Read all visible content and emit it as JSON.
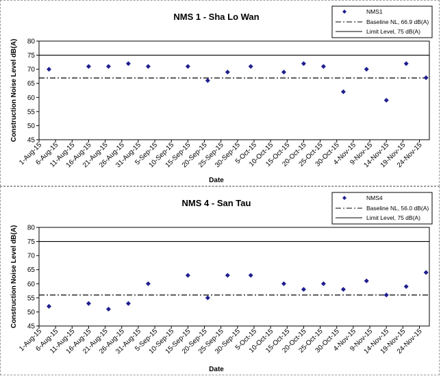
{
  "chart_data": [
    {
      "type": "scatter",
      "title": "NMS 1 - Sha Lo Wan",
      "xlabel": "Date",
      "ylabel": "Construction Noise Level  dB(A)",
      "ylim": [
        45,
        80
      ],
      "yticks": [
        "45",
        "50",
        "55",
        "60",
        "65",
        "70",
        "75",
        "80"
      ],
      "xtick_labels": [
        "1-Aug-15",
        "6-Aug-15",
        "11-Aug-15",
        "16-Aug-15",
        "21-Aug-15",
        "26-Aug-15",
        "31-Aug-15",
        "5-Sep-15",
        "10-Sep-15",
        "15-Sep-15",
        "20-Sep-15",
        "25-Sep-15",
        "30-Sep-15",
        "5-Oct-15",
        "10-Oct-15",
        "15-Oct-15",
        "20-Oct-15",
        "25-Oct-15",
        "30-Oct-15",
        "4-Nov-15",
        "9-Nov-15",
        "14-Nov-15",
        "19-Nov-15",
        "24-Nov-15"
      ],
      "grid": false,
      "legend_position": "top-right",
      "series": [
        {
          "name": "NMS1",
          "x": [
            "4-Aug-15",
            "16-Aug-15",
            "22-Aug-15",
            "28-Aug-15",
            "3-Sep-15",
            "15-Sep-15",
            "21-Sep-15",
            "27-Sep-15",
            "4-Oct-15",
            "14-Oct-15",
            "20-Oct-15",
            "26-Oct-15",
            "1-Nov-15",
            "8-Nov-15",
            "14-Nov-15",
            "20-Nov-15",
            "26-Nov-15"
          ],
          "y": [
            70,
            71,
            71,
            72,
            71,
            71,
            66,
            69,
            71,
            69,
            72,
            71,
            62,
            70,
            59,
            72,
            67
          ]
        }
      ],
      "reference_lines": [
        {
          "name": "Baseline NL, 66.9 dB(A)",
          "value": 66.9,
          "style": "dash-dot"
        },
        {
          "name": "Limit Level, 75 dB(A)",
          "value": 75,
          "style": "solid"
        }
      ],
      "colors": {
        "marker": "#1f1f8f",
        "line": "#000000"
      }
    },
    {
      "type": "scatter",
      "title": "NMS 4 - San Tau",
      "xlabel": "Date",
      "ylabel": "Construction Noise Level  dB(A)",
      "ylim": [
        45,
        80
      ],
      "yticks": [
        "45",
        "50",
        "55",
        "60",
        "65",
        "70",
        "75",
        "80"
      ],
      "xtick_labels": [
        "1-Aug-15",
        "6-Aug-15",
        "11-Aug-15",
        "16-Aug-15",
        "21-Aug-15",
        "26-Aug-15",
        "31-Aug-15",
        "5-Sep-15",
        "10-Sep-15",
        "15-Sep-15",
        "20-Sep-15",
        "25-Sep-15",
        "30-Sep-15",
        "5-Oct-15",
        "10-Oct-15",
        "15-Oct-15",
        "20-Oct-15",
        "25-Oct-15",
        "30-Oct-15",
        "4-Nov-15",
        "9-Nov-15",
        "14-Nov-15",
        "19-Nov-15",
        "24-Nov-15"
      ],
      "grid": false,
      "legend_position": "top-right",
      "series": [
        {
          "name": "NMS4",
          "x": [
            "4-Aug-15",
            "16-Aug-15",
            "22-Aug-15",
            "28-Aug-15",
            "3-Sep-15",
            "15-Sep-15",
            "21-Sep-15",
            "27-Sep-15",
            "4-Oct-15",
            "14-Oct-15",
            "20-Oct-15",
            "26-Oct-15",
            "1-Nov-15",
            "8-Nov-15",
            "14-Nov-15",
            "20-Nov-15",
            "26-Nov-15"
          ],
          "y": [
            52,
            53,
            51,
            53,
            60,
            63,
            55,
            63,
            63,
            60,
            58,
            60,
            58,
            61,
            56,
            59,
            64
          ]
        }
      ],
      "reference_lines": [
        {
          "name": "Baseline NL, 56.0 dB(A)",
          "value": 56.0,
          "style": "dash-dot"
        },
        {
          "name": "Limit Level, 75 dB(A)",
          "value": 75,
          "style": "solid"
        }
      ],
      "colors": {
        "marker": "#1f1f8f",
        "line": "#000000"
      }
    }
  ]
}
